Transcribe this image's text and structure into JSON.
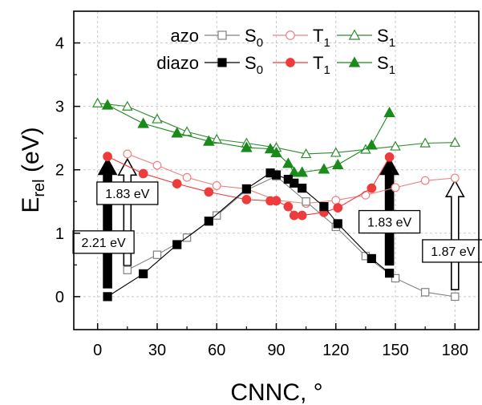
{
  "chart_data": {
    "type": "line",
    "xlabel": "CNNC, °",
    "ylabel_main": "E",
    "ylabel_sub": "rel",
    "ylabel_unit": " (eV)",
    "xlim": [
      -12,
      192
    ],
    "ylim": [
      -0.52,
      4.5
    ],
    "xticks": [
      0,
      30,
      60,
      90,
      120,
      150,
      180
    ],
    "yticks": [
      0,
      1,
      2,
      3,
      4
    ],
    "legend": {
      "placement": "top-right",
      "groups": [
        {
          "label": "azo",
          "entries": [
            {
              "main": "S",
              "sub": "0",
              "series": "azo_S0"
            },
            {
              "main": "T",
              "sub": "1",
              "series": "azo_T1"
            },
            {
              "main": "S",
              "sub": "1",
              "series": "azo_S1"
            }
          ]
        },
        {
          "label": "diazo",
          "entries": [
            {
              "main": "S",
              "sub": "0",
              "series": "diazo_S0"
            },
            {
              "main": "T",
              "sub": "1",
              "series": "diazo_T1"
            },
            {
              "main": "S",
              "sub": "1",
              "series": "diazo_S1"
            }
          ]
        }
      ]
    },
    "series": [
      {
        "key": "azo_S0",
        "color": "#808080",
        "marker": "square",
        "filled": false,
        "x": [
          15,
          30,
          45,
          60,
          75,
          90,
          105,
          120,
          135,
          150,
          165,
          180
        ],
        "y": [
          0.42,
          0.66,
          0.93,
          1.28,
          1.68,
          1.9,
          1.5,
          1.1,
          0.64,
          0.29,
          0.07,
          0.0
        ]
      },
      {
        "key": "azo_T1",
        "color": "#f08080",
        "marker": "circle",
        "filled": false,
        "x": [
          15,
          30,
          45,
          60,
          75,
          90,
          105,
          120,
          135,
          150,
          165,
          180
        ],
        "y": [
          2.25,
          2.07,
          1.88,
          1.75,
          1.7,
          1.52,
          1.47,
          1.52,
          1.6,
          1.72,
          1.83,
          1.87
        ]
      },
      {
        "key": "azo_S1",
        "color": "#2e8b2e",
        "marker": "triangle",
        "filled": false,
        "x": [
          0,
          15,
          30,
          45,
          60,
          75,
          90,
          105,
          120,
          135,
          150,
          165,
          180
        ],
        "y": [
          3.05,
          3.0,
          2.8,
          2.6,
          2.48,
          2.42,
          2.35,
          2.25,
          2.27,
          2.32,
          2.37,
          2.42,
          2.43
        ]
      },
      {
        "key": "diazo_S0",
        "color": "#000000",
        "marker": "square",
        "filled": true,
        "x": [
          5,
          23,
          40,
          56,
          75,
          87,
          90,
          96,
          99,
          103,
          114,
          121,
          138,
          147
        ],
        "y": [
          0.0,
          0.36,
          0.82,
          1.19,
          1.7,
          1.95,
          1.92,
          1.85,
          1.79,
          1.71,
          1.42,
          1.15,
          0.6,
          0.37
        ]
      },
      {
        "key": "diazo_T1",
        "color": "#ee3b3b",
        "marker": "circle",
        "filled": true,
        "x": [
          5,
          23,
          40,
          56,
          75,
          87,
          90,
          96,
          99,
          103,
          114,
          121,
          138,
          147
        ],
        "y": [
          2.21,
          1.94,
          1.78,
          1.65,
          1.53,
          1.51,
          1.51,
          1.42,
          1.28,
          1.28,
          1.33,
          1.4,
          1.71,
          2.2
        ]
      },
      {
        "key": "diazo_S1",
        "color": "#1a8a1a",
        "marker": "triangle",
        "filled": true,
        "x": [
          5,
          23,
          40,
          56,
          75,
          87,
          90,
          96,
          99,
          103,
          114,
          121,
          138,
          147
        ],
        "y": [
          3.02,
          2.73,
          2.58,
          2.45,
          2.35,
          2.33,
          2.27,
          2.1,
          1.96,
          1.96,
          2.01,
          2.08,
          2.39,
          2.9
        ]
      }
    ],
    "arrows": [
      {
        "x": 5,
        "from": 0.14,
        "to": 2.18,
        "filled": true
      },
      {
        "x": 15,
        "from": 0.49,
        "to": 2.17,
        "filled": false
      },
      {
        "x": 147,
        "from": 0.5,
        "to": 2.18,
        "filled": true
      },
      {
        "x": 180,
        "from": 0.11,
        "to": 1.83,
        "filled": false
      }
    ],
    "annotations": [
      {
        "text": "1.83 eV",
        "x": 15,
        "y": 1.63
      },
      {
        "text": "2.21 eV",
        "x": 3,
        "y": 0.86
      },
      {
        "text": "1.83 eV",
        "x": 147,
        "y": 1.18
      },
      {
        "text": "1.87 eV",
        "x": 179,
        "y": 0.72
      }
    ]
  }
}
